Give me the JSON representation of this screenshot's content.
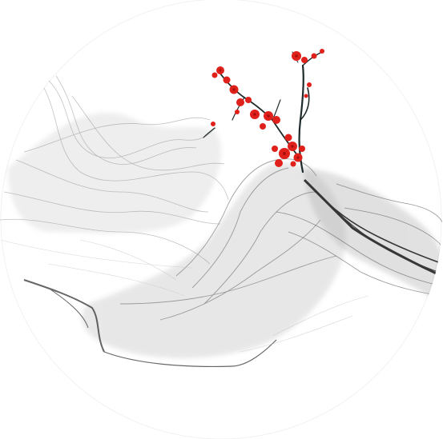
{
  "artwork": {
    "subject": "ink-wash-landscape-with-plum-blossoms",
    "palette": {
      "background": "#ffffff",
      "disc": "#ffffff",
      "ink_dark": "#1a1a1a",
      "ink_mid": "#555555",
      "ink_light": "#b8b8b8",
      "ink_wash": "#d9d9d9",
      "blossom": "#e0201a",
      "blossom_dark": "#a8100c",
      "branch": "#1f2a2a"
    }
  }
}
